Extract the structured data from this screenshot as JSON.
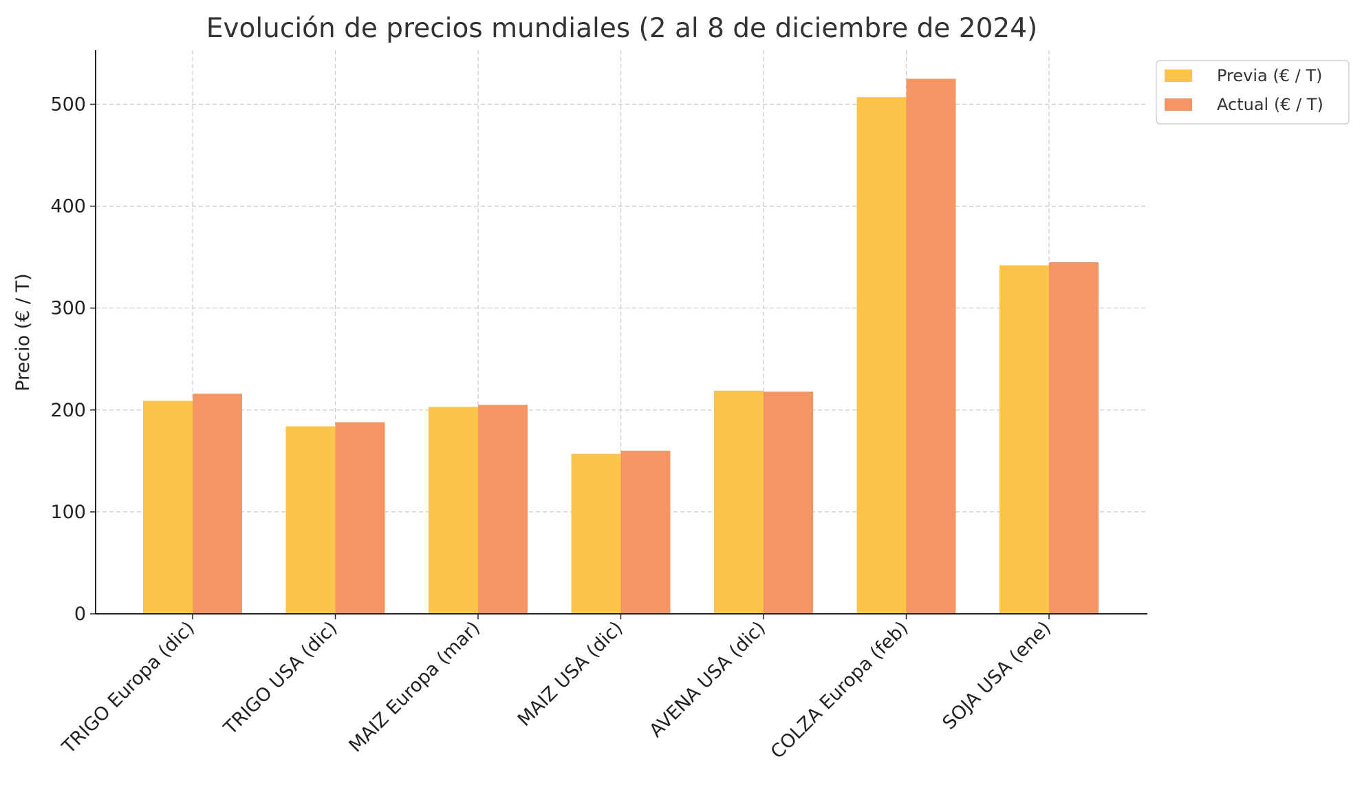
{
  "chart_data": {
    "type": "bar",
    "title": "Evolución de precios mundiales (2 al 8 de diciembre de 2024)",
    "xlabel": "",
    "ylabel": "Precio (€ / T)",
    "categories": [
      "TRIGO Europa (dic)",
      "TRIGO USA (dic)",
      "MAIZ Europa (mar)",
      "MAIZ USA (dic)",
      "AVENA USA (dic)",
      "COLZA Europa (feb)",
      "SOJA USA (ene)"
    ],
    "series": [
      {
        "name": "Previa (€ / T)",
        "color": "#FDC44C",
        "values": [
          209,
          184,
          203,
          157,
          219,
          507,
          342
        ]
      },
      {
        "name": "Actual (€ / T)",
        "color": "#F59563",
        "values": [
          216,
          188,
          205,
          160,
          218,
          525,
          345
        ]
      }
    ],
    "ylim": [
      0,
      553
    ],
    "yticks": [
      0,
      100,
      200,
      300,
      400,
      500
    ],
    "grid": true,
    "legend_position": "top-right-outside"
  }
}
